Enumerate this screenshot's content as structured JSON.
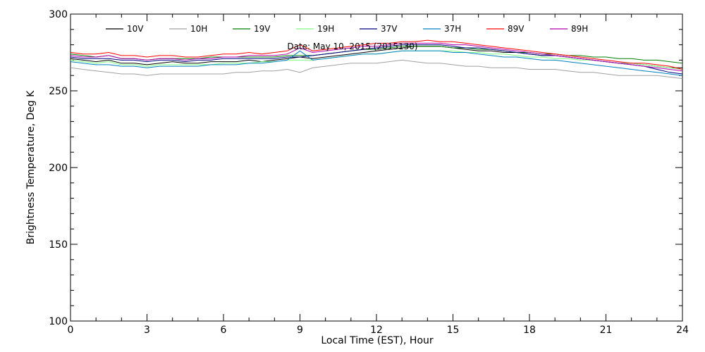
{
  "chart_data": {
    "type": "line",
    "title": "",
    "annotation": "Date: May 10, 2015 (2015130)",
    "xlabel": "Local Time (EST), Hour",
    "ylabel": "Brightness Temperature, Deg K",
    "xlim": [
      0,
      24
    ],
    "ylim": [
      100,
      300
    ],
    "xticks": [
      0,
      3,
      6,
      9,
      12,
      15,
      18,
      21,
      24
    ],
    "yticks": [
      100,
      150,
      200,
      250,
      300
    ],
    "x_minor_step": 1,
    "y_minor_step": 10,
    "grid": false,
    "legend_position": "top",
    "x": [
      0,
      0.5,
      1,
      1.5,
      2,
      2.5,
      3,
      3.5,
      4,
      4.5,
      5,
      5.5,
      6,
      6.5,
      7,
      7.5,
      8,
      8.5,
      9,
      9.5,
      10,
      10.5,
      11,
      11.5,
      12,
      12.5,
      13,
      13.5,
      14,
      14.5,
      15,
      15.5,
      16,
      16.5,
      17,
      17.5,
      18,
      18.5,
      19,
      19.5,
      20,
      20.5,
      21,
      21.5,
      22,
      22.5,
      23,
      23.5,
      24
    ],
    "series": [
      {
        "name": "10V",
        "color": "#000000",
        "values": [
          271,
          270,
          269,
          270,
          268,
          268,
          267,
          268,
          269,
          268,
          268,
          269,
          269,
          269,
          270,
          269,
          270,
          271,
          272,
          271,
          272,
          273,
          274,
          275,
          276,
          277,
          278,
          279,
          279,
          279,
          278,
          277,
          276,
          276,
          275,
          275,
          274,
          273,
          273,
          272,
          271,
          270,
          269,
          268,
          268,
          267,
          266,
          265,
          265
        ]
      },
      {
        "name": "10H",
        "color": "#a0a0a0",
        "values": [
          265,
          264,
          263,
          262,
          261,
          261,
          260,
          261,
          261,
          261,
          261,
          261,
          261,
          262,
          262,
          263,
          263,
          264,
          262,
          265,
          266,
          267,
          268,
          268,
          268,
          269,
          270,
          269,
          268,
          268,
          267,
          266,
          266,
          265,
          265,
          265,
          264,
          264,
          264,
          263,
          262,
          262,
          261,
          260,
          260,
          260,
          260,
          259,
          258
        ]
      },
      {
        "name": "19V",
        "color": "#008000",
        "values": [
          274,
          273,
          272,
          273,
          271,
          271,
          270,
          271,
          271,
          271,
          271,
          272,
          272,
          272,
          272,
          272,
          272,
          273,
          273,
          273,
          274,
          275,
          276,
          277,
          277,
          278,
          279,
          279,
          279,
          279,
          278,
          278,
          277,
          277,
          276,
          275,
          275,
          274,
          274,
          273,
          273,
          272,
          272,
          271,
          271,
          270,
          270,
          269,
          268
        ]
      },
      {
        "name": "19H",
        "color": "#80ff80",
        "values": [
          270,
          269,
          268,
          269,
          267,
          267,
          266,
          267,
          267,
          267,
          267,
          267,
          268,
          268,
          268,
          269,
          269,
          270,
          270,
          270,
          271,
          272,
          273,
          274,
          274,
          275,
          276,
          276,
          276,
          276,
          276,
          275,
          275,
          274,
          274,
          273,
          272,
          272,
          271,
          271,
          270,
          270,
          269,
          268,
          268,
          267,
          266,
          265,
          264
        ]
      },
      {
        "name": "37V",
        "color": "#000080",
        "values": [
          272,
          271,
          271,
          271,
          270,
          270,
          269,
          270,
          270,
          269,
          270,
          270,
          271,
          271,
          271,
          271,
          271,
          272,
          272,
          273,
          274,
          275,
          276,
          277,
          278,
          279,
          280,
          280,
          280,
          280,
          279,
          278,
          278,
          277,
          276,
          275,
          274,
          273,
          273,
          272,
          271,
          270,
          269,
          268,
          267,
          266,
          264,
          262,
          261
        ]
      },
      {
        "name": "37H",
        "color": "#0080c0",
        "values": [
          269,
          268,
          267,
          267,
          266,
          266,
          265,
          266,
          266,
          266,
          266,
          267,
          267,
          267,
          268,
          268,
          269,
          270,
          276,
          270,
          271,
          272,
          273,
          274,
          274,
          275,
          276,
          276,
          276,
          276,
          275,
          275,
          274,
          273,
          272,
          272,
          271,
          270,
          270,
          269,
          268,
          267,
          266,
          265,
          264,
          263,
          262,
          261,
          260
        ]
      },
      {
        "name": "89V",
        "color": "#ff0000",
        "values": [
          275,
          274,
          274,
          275,
          273,
          273,
          272,
          273,
          273,
          272,
          272,
          273,
          274,
          274,
          275,
          274,
          275,
          276,
          280,
          276,
          277,
          278,
          279,
          280,
          281,
          281,
          282,
          282,
          283,
          282,
          282,
          281,
          280,
          279,
          278,
          277,
          276,
          275,
          274,
          273,
          272,
          271,
          270,
          269,
          268,
          268,
          267,
          266,
          264
        ]
      },
      {
        "name": "89H",
        "color": "#b000b0",
        "values": [
          273,
          272,
          272,
          273,
          271,
          271,
          270,
          271,
          271,
          270,
          271,
          271,
          272,
          272,
          273,
          273,
          273,
          274,
          278,
          275,
          276,
          277,
          278,
          279,
          279,
          280,
          281,
          281,
          281,
          281,
          280,
          280,
          279,
          278,
          277,
          276,
          275,
          274,
          273,
          272,
          271,
          270,
          269,
          268,
          267,
          266,
          265,
          264,
          263
        ]
      }
    ]
  }
}
